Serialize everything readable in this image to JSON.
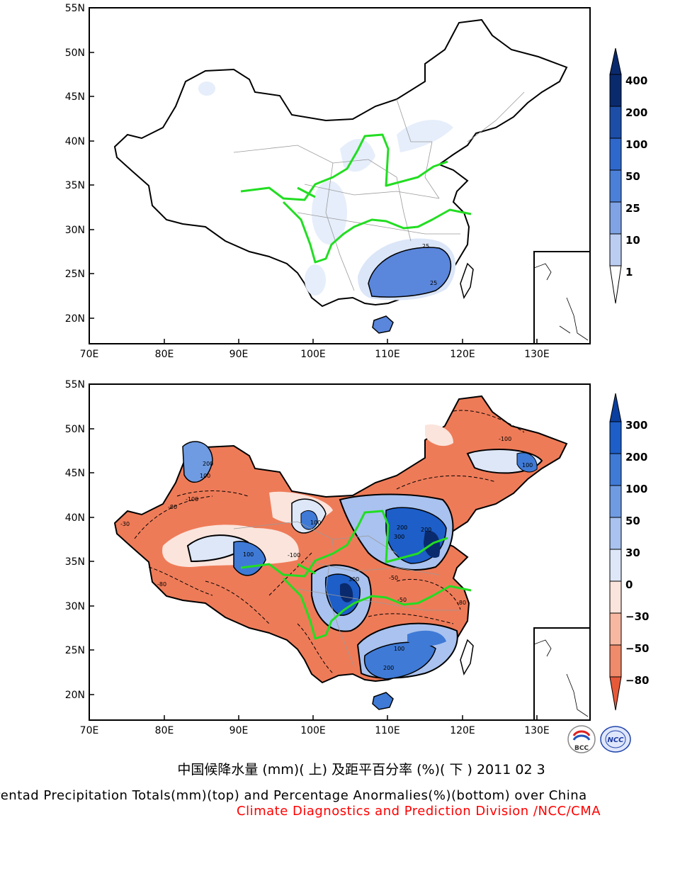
{
  "maps": [
    {
      "id": "top",
      "description": "Pentad precipitation totals",
      "lat_labels": [
        "55N",
        "50N",
        "45N",
        "40N",
        "35N",
        "30N",
        "25N",
        "20N"
      ],
      "lon_labels": [
        "70E",
        "80E",
        "90E",
        "100E",
        "110E",
        "120E",
        "130E"
      ],
      "colorbar": {
        "labels": [
          "400",
          "200",
          "100",
          "50",
          "25",
          "10",
          "1"
        ],
        "colors": [
          "#0a2a6e",
          "#1c4ea8",
          "#2f68cc",
          "#4b80d8",
          "#7fa3e4",
          "#bccdf2",
          "#ffffff"
        ]
      },
      "contour_labels": [
        "25",
        "25"
      ]
    },
    {
      "id": "bottom",
      "description": "Percentage anomalies",
      "lat_labels": [
        "55N",
        "50N",
        "45N",
        "40N",
        "35N",
        "30N",
        "25N",
        "20N"
      ],
      "lon_labels": [
        "70E",
        "80E",
        "90E",
        "100E",
        "110E",
        "120E",
        "130E"
      ],
      "colorbar": {
        "labels": [
          "300",
          "200",
          "100",
          "50",
          "30",
          "0",
          "−30",
          "−50",
          "−80"
        ],
        "colors": [
          "#0a3fa0",
          "#1d5ec8",
          "#3f7ad6",
          "#6f9be2",
          "#a9c2ef",
          "#dde7f8",
          "#fbe4dc",
          "#f7b7a1",
          "#ef8a6b",
          "#e65a3a"
        ]
      },
      "contour_labels": [
        "200",
        "100",
        "-80",
        "-100",
        "-80",
        "100",
        "-100",
        "200",
        "300",
        "300",
        "100",
        "200",
        "100",
        "-50",
        "-50",
        "-80",
        "-100",
        "100",
        "200",
        "-30"
      ]
    }
  ],
  "captions": {
    "chinese": "中国候降水量 (mm)( 上) 及距平百分率 (%)( 下 ) 2011 02 3",
    "english": "Pentad Precipitation Totals(mm)(top) and Percentage Anormalies(%)(bottom) over China",
    "division": "Climate Diagnostics and Prediction Division /NCC/CMA"
  },
  "logos": [
    {
      "name": "bcc-logo",
      "text": "BCC"
    },
    {
      "name": "ncc-logo",
      "text": "NCC"
    }
  ]
}
